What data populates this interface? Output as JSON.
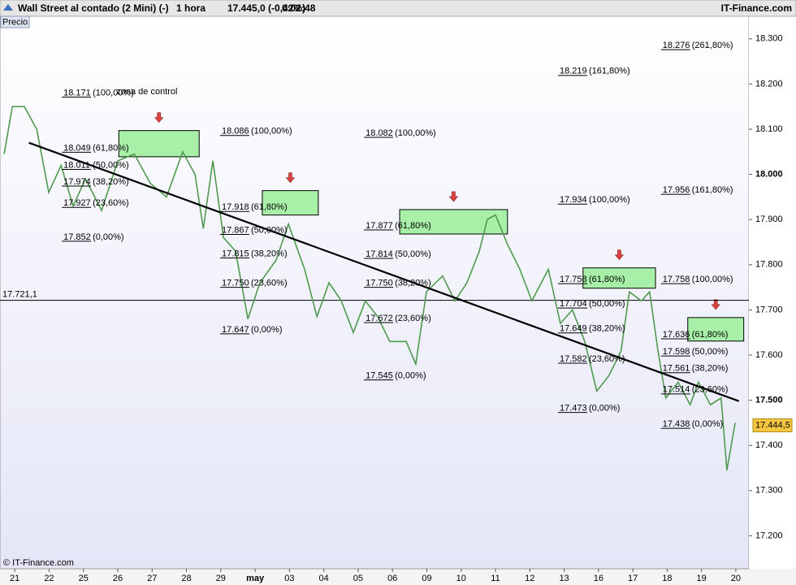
{
  "toolbar": {
    "title": "Wall Street al contado (2 Mini) (-)",
    "interval": "1 hora",
    "quote": "17.445,0 (-0,42%)",
    "time": "0:02:48",
    "brand": "IT-Finance.com"
  },
  "price_tag": "Precio",
  "copyright": "© IT-Finance.com",
  "chart_data": {
    "type": "line",
    "categories": [
      "21",
      "22",
      "25",
      "26",
      "27",
      "28",
      "29",
      "may",
      "03",
      "04",
      "05",
      "06",
      "09",
      "10",
      "11",
      "12",
      "13",
      "16",
      "17",
      "18",
      "19",
      "20"
    ],
    "xlim": [
      -0.43,
      21.38
    ],
    "ylim": [
      17.127,
      18.35
    ],
    "yticks": [
      {
        "value": 17.2,
        "label": "17.200"
      },
      {
        "value": 17.3,
        "label": "17.300"
      },
      {
        "value": 17.4,
        "label": "17.400"
      },
      {
        "value": 17.5,
        "label": "17.500"
      },
      {
        "value": 17.6,
        "label": "17.600"
      },
      {
        "value": 17.7,
        "label": "17.700"
      },
      {
        "value": 17.8,
        "label": "17.800"
      },
      {
        "value": 17.9,
        "label": "17.900"
      },
      {
        "value": 18,
        "label": "18.000"
      },
      {
        "value": 18.1,
        "label": "18.100"
      },
      {
        "value": 18.2,
        "label": "18.200"
      },
      {
        "value": 18.3,
        "label": "18.300"
      }
    ],
    "x": [
      -0.31,
      -0.07,
      0.28,
      0.64,
      0.99,
      1.35,
      1.7,
      2.06,
      2.53,
      3.0,
      3.48,
      3.95,
      4.42,
      4.89,
      5.25,
      5.49,
      5.77,
      6.08,
      6.43,
      6.79,
      7.14,
      7.61,
      7.97,
      8.44,
      8.8,
      9.15,
      9.51,
      9.86,
      10.21,
      10.57,
      10.92,
      11.4,
      11.68,
      11.99,
      12.46,
      12.82,
      13.17,
      13.53,
      13.76,
      14.0,
      14.35,
      14.71,
      15.06,
      15.54,
      15.89,
      16.24,
      16.6,
      16.95,
      17.31,
      17.66,
      17.9,
      18.25,
      18.49,
      18.73,
      18.96,
      19.32,
      19.67,
      19.91,
      20.26,
      20.57,
      20.74,
      20.98
    ],
    "series": [
      {
        "name": "Precio",
        "color": "#4f9a4f",
        "values": [
          18.045,
          18.15,
          18.15,
          18.1,
          17.96,
          18.02,
          17.93,
          17.99,
          17.92,
          18.03,
          18.045,
          17.98,
          17.95,
          18.05,
          18.0,
          17.88,
          18.03,
          17.86,
          17.83,
          17.68,
          17.76,
          17.81,
          17.89,
          17.79,
          17.685,
          17.76,
          17.72,
          17.65,
          17.72,
          17.685,
          17.63,
          17.63,
          17.58,
          17.74,
          17.775,
          17.72,
          17.76,
          17.83,
          17.9,
          17.91,
          17.845,
          17.79,
          17.72,
          17.79,
          17.67,
          17.7,
          17.63,
          17.52,
          17.555,
          17.61,
          17.74,
          17.72,
          17.74,
          17.61,
          17.505,
          17.54,
          17.49,
          17.54,
          17.49,
          17.505,
          17.345,
          17.45
        ]
      }
    ],
    "trendline": {
      "x": [
        0.41,
        21.09
      ],
      "values": [
        18.07,
        17.498
      ]
    },
    "hline": {
      "value": 17.7211,
      "label": "17.721,1"
    },
    "last_price": {
      "value": 17.4445,
      "label": "17.444,5"
    },
    "annotation": "zona de control",
    "zones": [
      {
        "x0": 3.03,
        "x1": 5.37,
        "low": 18.039,
        "high": 18.097
      },
      {
        "x0": 7.21,
        "x1": 8.84,
        "low": 17.91,
        "high": 17.964
      },
      {
        "x0": 11.21,
        "x1": 14.35,
        "low": 17.868,
        "high": 17.922
      },
      {
        "x0": 16.55,
        "x1": 18.66,
        "low": 17.748,
        "high": 17.793
      },
      {
        "x0": 19.6,
        "x1": 21.23,
        "low": 17.631,
        "high": 17.683
      }
    ],
    "fib_groups": [
      {
        "x": 1.37,
        "levels": [
          {
            "value": 18.171,
            "label": "18.171",
            "pct": "(100,00%)"
          },
          {
            "value": 18.049,
            "label": "18.049",
            "pct": "(61,80%)"
          },
          {
            "value": 18.011,
            "label": "18.011",
            "pct": "(50,00%)"
          },
          {
            "value": 17.974,
            "label": "17.974",
            "pct": "(38,20%)"
          },
          {
            "value": 17.927,
            "label": "17.927",
            "pct": "(23,60%)"
          },
          {
            "value": 17.852,
            "label": "17.852",
            "pct": "(0,00%)"
          }
        ]
      },
      {
        "x": 5.98,
        "levels": [
          {
            "value": 18.086,
            "label": "18.086",
            "pct": "(100,00%)"
          },
          {
            "value": 17.918,
            "label": "17.918",
            "pct": "(61,80%)"
          },
          {
            "value": 17.867,
            "label": "17.867",
            "pct": "(50,00%)"
          },
          {
            "value": 17.815,
            "label": "17.815",
            "pct": "(38,20%)"
          },
          {
            "value": 17.75,
            "label": "17.750",
            "pct": "(23,60%)"
          },
          {
            "value": 17.647,
            "label": "17.647",
            "pct": "(0,00%)"
          }
        ]
      },
      {
        "x": 10.17,
        "levels": [
          {
            "value": 18.082,
            "label": "18.082",
            "pct": "(100,00%)"
          },
          {
            "value": 17.877,
            "label": "17.877",
            "pct": "(61,80%)"
          },
          {
            "value": 17.814,
            "label": "17.814",
            "pct": "(50,00%)"
          },
          {
            "value": 17.75,
            "label": "17.750",
            "pct": "(38,20%)"
          },
          {
            "value": 17.672,
            "label": "17.672",
            "pct": "(23,60%)"
          },
          {
            "value": 17.545,
            "label": "17.545",
            "pct": "(0,00%)"
          }
        ]
      },
      {
        "x": 15.82,
        "levels": [
          {
            "value": 18.219,
            "label": "18.219",
            "pct": "(161,80%)"
          },
          {
            "value": 17.934,
            "label": "17.934",
            "pct": "(100,00%)"
          },
          {
            "value": 17.758,
            "label": "17.758",
            "pct": "(61,80%)"
          },
          {
            "value": 17.704,
            "label": "17.704",
            "pct": "(50,00%)"
          },
          {
            "value": 17.649,
            "label": "17.649",
            "pct": "(38,20%)"
          },
          {
            "value": 17.582,
            "label": "17.582",
            "pct": "(23,60%)"
          },
          {
            "value": 17.473,
            "label": "17.473",
            "pct": "(0,00%)"
          }
        ]
      },
      {
        "x": 18.82,
        "levels": [
          {
            "value": 18.276,
            "label": "18.276",
            "pct": "(261,80%)"
          },
          {
            "value": 17.956,
            "label": "17.956",
            "pct": "(161,80%)"
          },
          {
            "value": 17.758,
            "label": "17.758",
            "pct": "(100,00%)"
          },
          {
            "value": 17.636,
            "label": "17.636",
            "pct": "(61,80%)"
          },
          {
            "value": 17.598,
            "label": "17.598",
            "pct": "(50,00%)"
          },
          {
            "value": 17.561,
            "label": "17.561",
            "pct": "(38,20%)"
          },
          {
            "value": 17.514,
            "label": "17.514",
            "pct": "(23,60%)"
          },
          {
            "value": 17.438,
            "label": "17.438",
            "pct": "(0,00%)"
          }
        ]
      }
    ]
  }
}
